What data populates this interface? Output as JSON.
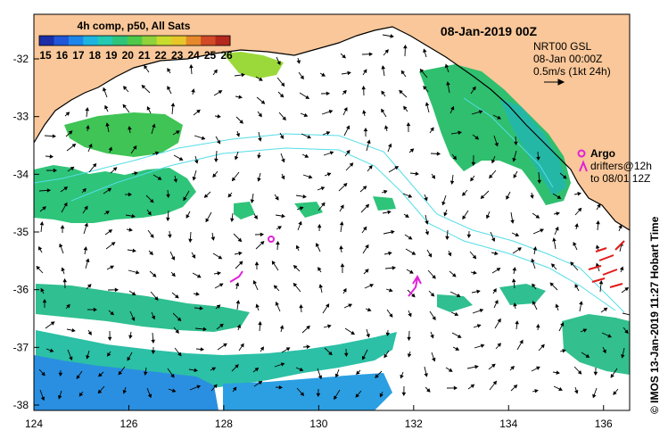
{
  "title": "08-Jan-2019 00Z",
  "colorbar": {
    "title": "4h comp, p50, All Sats",
    "tick_labels": [
      "15",
      "16",
      "17",
      "18",
      "19",
      "20",
      "21",
      "22",
      "23",
      "24",
      "25",
      "26"
    ],
    "colors": [
      "#1b2fa8",
      "#1f57d8",
      "#1e86ea",
      "#1fb4e0",
      "#23c9b0",
      "#2ec47a",
      "#4fc94a",
      "#8fd23a",
      "#c9dc2e",
      "#e7c62a",
      "#e6892a",
      "#d24a26",
      "#b5281e"
    ]
  },
  "info": {
    "line1": "NRT00 GSL",
    "line2": "08-Jan 00:00Z",
    "line3": "0.5m/s (1kt 24h)"
  },
  "legend": {
    "argo_label": "Argo",
    "drifters_line1": "drifters@12h",
    "drifters_line2": "to 08/01 12Z",
    "argo_color": "#e021d8",
    "drifter_color": "#e21a1a"
  },
  "axes": {
    "x_ticks": [
      "124",
      "126",
      "128",
      "130",
      "132",
      "134",
      "136"
    ],
    "y_ticks": [
      "-32",
      "-33",
      "-34",
      "-35",
      "-36",
      "-37",
      "-38"
    ]
  },
  "credit": "© IMOS 13-Jan-2019 11:27 Hobart Time",
  "colors": {
    "land": "#f9c799",
    "ocean": "#ffffff",
    "coastline": "#000000",
    "contour": "#55dde8",
    "sst_green": "#35c45a",
    "sst_teal": "#2cc0a6",
    "sst_blue": "#2a8fe0"
  }
}
